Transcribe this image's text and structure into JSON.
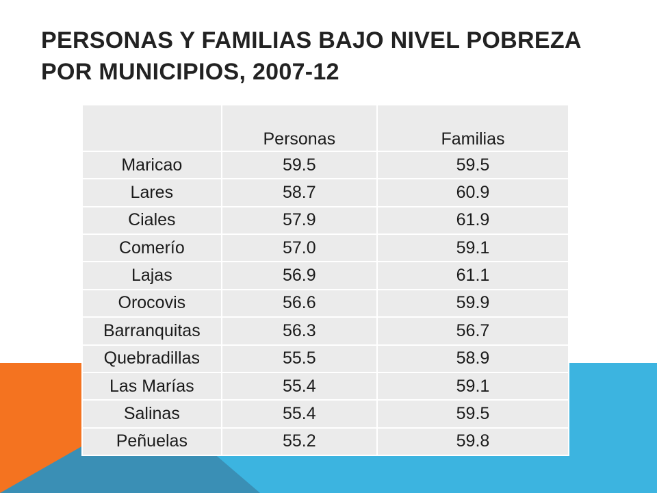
{
  "title": "PERSONAS Y FAMILIAS BAJO NIVEL POBREZA POR MUNICIPIOS, 2007-12",
  "table": {
    "headers": [
      "",
      "Personas",
      "Familias"
    ],
    "rows": [
      [
        "Maricao",
        "59.5",
        "59.5"
      ],
      [
        "Lares",
        "58.7",
        "60.9"
      ],
      [
        "Ciales",
        "57.9",
        "61.9"
      ],
      [
        "Comerío",
        "57.0",
        "59.1"
      ],
      [
        "Lajas",
        "56.9",
        "61.1"
      ],
      [
        "Orocovis",
        "56.6",
        "59.9"
      ],
      [
        "Barranquitas",
        "56.3",
        "56.7"
      ],
      [
        "Quebradillas",
        "55.5",
        "58.9"
      ],
      [
        "Las Marías",
        "55.4",
        "59.1"
      ],
      [
        "Salinas",
        "55.4",
        "59.5"
      ],
      [
        "Peñuelas",
        "55.2",
        "59.8"
      ]
    ]
  },
  "colors": {
    "orange_accent": "#f47320",
    "blue_accent": "#3cb4e0",
    "teal_accent": "#3a8fb5",
    "table_fill": "#ebebeb"
  }
}
